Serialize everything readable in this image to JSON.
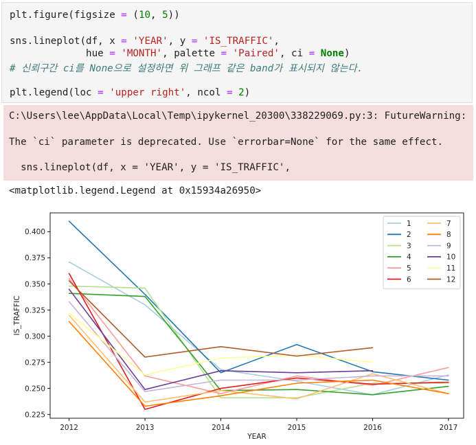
{
  "code": {
    "line1": [
      "plt.figure(figsize ",
      "=",
      " (",
      "10",
      ", ",
      "5",
      "))"
    ],
    "line2": [
      "sns.lineplot(df, x ",
      "=",
      " ",
      "'YEAR'",
      ", y ",
      "=",
      " ",
      "'IS_TRAFFIC'",
      ","
    ],
    "line3": [
      "             hue ",
      "=",
      " ",
      "'MONTH'",
      ", palette ",
      "=",
      " ",
      "'Paired'",
      ", ci ",
      "=",
      " ",
      "None",
      ")"
    ],
    "line4": "# 신뢰구간 ci를 None으로 설정하면 위 그래프 같은 band가 표시되지 않는다.",
    "line5": [
      "plt.legend(loc ",
      "=",
      " ",
      "'upper right'",
      ", ncol ",
      "=",
      " ",
      "2",
      ")"
    ]
  },
  "stderr": {
    "line1": "C:\\Users\\lee\\AppData\\Local\\Temp\\ipykernel_20300\\338229069.py:3: FutureWarning:",
    "line2": "The `ci` parameter is deprecated. Use `errorbar=None` for the same effect.",
    "line3": "  sns.lineplot(df, x = 'YEAR', y = 'IS_TRAFFIC',"
  },
  "output_text": "<matplotlib.legend.Legend at 0x15934a26950>",
  "chart_data": {
    "type": "line",
    "xlabel": "YEAR",
    "ylabel": "IS_TRAFFIC",
    "xlim": [
      2011.75,
      2017.2
    ],
    "ylim": [
      0.2215,
      0.418
    ],
    "x_ticks": [
      2012,
      2013,
      2014,
      2015,
      2016,
      2017
    ],
    "y_ticks": [
      0.225,
      0.25,
      0.275,
      0.3,
      0.325,
      0.35,
      0.375,
      0.4
    ],
    "y_tick_labels": [
      "0.225",
      "0.250",
      "0.275",
      "0.300",
      "0.325",
      "0.350",
      "0.375",
      "0.400"
    ],
    "legend": {
      "placement": "top-right",
      "ncol": 2
    },
    "grid": false,
    "series": [
      {
        "name": "1",
        "color": "#a6cee3",
        "x": [
          2012,
          2013,
          2014,
          2015,
          2016,
          2017
        ],
        "y": [
          0.371,
          0.33,
          0.268,
          0.257,
          0.244,
          0.263
        ]
      },
      {
        "name": "2",
        "color": "#1f78b4",
        "x": [
          2012,
          2013,
          2014,
          2015,
          2016,
          2017
        ],
        "y": [
          0.41,
          0.34,
          0.265,
          0.292,
          0.266,
          0.258
        ]
      },
      {
        "name": "3",
        "color": "#b2df8a",
        "x": [
          2012,
          2013,
          2014,
          2015,
          2016,
          2017
        ],
        "y": [
          0.348,
          0.346,
          0.241,
          0.241,
          0.255,
          0.255
        ]
      },
      {
        "name": "4",
        "color": "#33a02c",
        "x": [
          2012,
          2013,
          2014,
          2015,
          2016,
          2017
        ],
        "y": [
          0.341,
          0.338,
          0.248,
          0.249,
          0.244,
          0.252
        ]
      },
      {
        "name": "5",
        "color": "#fb9a99",
        "x": [
          2012,
          2013,
          2014,
          2015,
          2016,
          2017
        ],
        "y": [
          0.355,
          0.262,
          0.245,
          0.262,
          0.253,
          0.27
        ]
      },
      {
        "name": "6",
        "color": "#e31a1c",
        "x": [
          2012,
          2013,
          2014,
          2015,
          2016,
          2017
        ],
        "y": [
          0.36,
          0.23,
          0.25,
          0.26,
          0.254,
          0.256
        ]
      },
      {
        "name": "7",
        "color": "#fdbf6f",
        "x": [
          2012,
          2013,
          2014,
          2015,
          2016,
          2017
        ],
        "y": [
          0.32,
          0.237,
          0.248,
          0.24,
          0.264,
          0.245
        ]
      },
      {
        "name": "8",
        "color": "#ff7f00",
        "x": [
          2012,
          2013,
          2014,
          2015,
          2016,
          2017
        ],
        "y": [
          0.314,
          0.233,
          0.243,
          0.255,
          0.258,
          0.245
        ]
      },
      {
        "name": "9",
        "color": "#cab2d6",
        "x": [
          2012,
          2013,
          2014,
          2015,
          2016,
          2017
        ],
        "y": [
          0.333,
          0.247,
          0.258,
          0.258,
          0.262,
          0.262
        ]
      },
      {
        "name": "10",
        "color": "#6a3d9a",
        "x": [
          2012,
          2013,
          2014,
          2015,
          2016
        ],
        "y": [
          0.345,
          0.249,
          0.267,
          0.265,
          0.267
        ]
      },
      {
        "name": "11",
        "color": "#ffff99",
        "x": [
          2012,
          2013,
          2014,
          2015,
          2016
        ],
        "y": [
          0.322,
          0.263,
          0.279,
          0.282,
          0.275
        ]
      },
      {
        "name": "12",
        "color": "#b15928",
        "x": [
          2012,
          2013,
          2014,
          2015,
          2016
        ],
        "y": [
          0.353,
          0.28,
          0.29,
          0.281,
          0.289
        ]
      }
    ]
  }
}
